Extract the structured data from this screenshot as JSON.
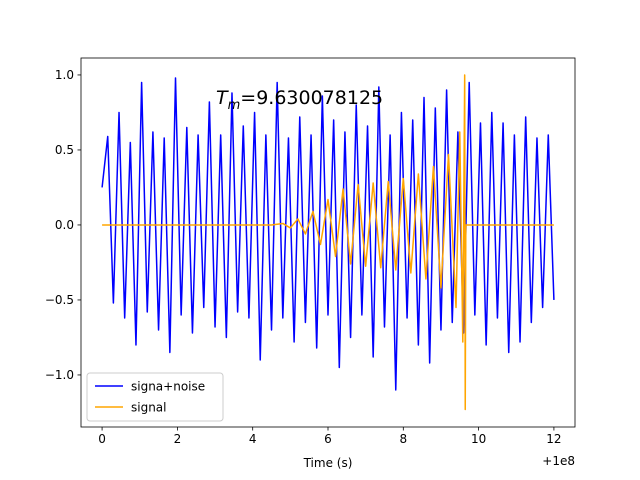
{
  "chart_data": {
    "type": "line",
    "xlabel": "Time (s)",
    "x_offset_label": "+1e8",
    "annotation": {
      "symbol": "T",
      "subscript": "m",
      "text": "=9.630078125"
    },
    "xlim": [
      -0.56,
      12.56
    ],
    "ylim": [
      -1.347,
      1.113
    ],
    "xticks": [
      0,
      2,
      4,
      6,
      8,
      10,
      12
    ],
    "yticks": [
      {
        "value": -1.0,
        "label": "−1.0"
      },
      {
        "value": -0.5,
        "label": "−0.5"
      },
      {
        "value": 0.0,
        "label": "0.0"
      },
      0.5,
      {
        "value": 1.0,
        "label": "1.0"
      }
    ],
    "legend": "lower left",
    "series": [
      {
        "name": "signa+noise",
        "color": "#0000ff",
        "x": [
          0,
          0.15,
          0.3,
          0.45,
          0.6,
          0.75,
          0.9,
          1.05,
          1.2,
          1.35,
          1.5,
          1.65,
          1.8,
          1.95,
          2.1,
          2.25,
          2.4,
          2.55,
          2.7,
          2.85,
          3,
          3.15,
          3.3,
          3.45,
          3.6,
          3.75,
          3.9,
          4.05,
          4.2,
          4.35,
          4.5,
          4.65,
          4.8,
          4.95,
          5.1,
          5.25,
          5.4,
          5.55,
          5.7,
          5.85,
          6,
          6.15,
          6.3,
          6.45,
          6.6,
          6.75,
          6.9,
          7.05,
          7.2,
          7.35,
          7.5,
          7.65,
          7.8,
          7.95,
          8.1,
          8.25,
          8.4,
          8.55,
          8.7,
          8.85,
          9,
          9.15,
          9.3,
          9.45,
          9.6,
          9.75,
          9.9,
          10.05,
          10.2,
          10.35,
          10.5,
          10.65,
          10.8,
          10.95,
          11.1,
          11.25,
          11.4,
          11.55,
          11.7,
          11.85,
          12
        ],
        "values": [
          0.25,
          0.59,
          -0.52,
          0.75,
          -0.62,
          0.55,
          -0.8,
          0.95,
          -0.58,
          0.62,
          -0.7,
          0.58,
          -0.85,
          0.98,
          -0.6,
          0.65,
          -0.72,
          0.6,
          -0.55,
          0.82,
          -0.68,
          0.6,
          -0.75,
          0.88,
          -0.58,
          0.66,
          -0.62,
          0.75,
          -0.9,
          0.6,
          -0.7,
          0.95,
          -0.62,
          0.58,
          -0.78,
          0.72,
          -0.65,
          0.6,
          -0.82,
          0.86,
          -0.6,
          0.7,
          -0.95,
          0.62,
          -0.75,
          0.8,
          -0.6,
          0.66,
          -0.88,
          0.92,
          -0.68,
          0.6,
          -1.1,
          0.75,
          -0.62,
          0.7,
          -0.8,
          0.85,
          -0.92,
          0.78,
          -0.7,
          0.9,
          -0.65,
          0.62,
          -0.72,
          0.95,
          -0.6,
          0.68,
          -0.8,
          0.75,
          -0.62,
          0.68,
          -0.85,
          0.6,
          -0.78,
          0.72,
          -0.65,
          0.58,
          -0.55,
          0.6,
          -0.5
        ]
      },
      {
        "name": "signal",
        "color": "#ffa500",
        "x": [
          0,
          4.5,
          4.8,
          5,
          5.2,
          5.4,
          5.6,
          5.8,
          6,
          6.2,
          6.4,
          6.6,
          6.8,
          7,
          7.2,
          7.4,
          7.6,
          7.8,
          8,
          8.2,
          8.4,
          8.6,
          8.8,
          9,
          9.2,
          9.4,
          9.5,
          9.58,
          9.63,
          9.645,
          9.66,
          12
        ],
        "values": [
          0,
          0,
          0.01,
          -0.02,
          0.04,
          -0.06,
          0.09,
          -0.13,
          0.17,
          -0.21,
          0.24,
          -0.26,
          0.27,
          -0.275,
          0.28,
          -0.285,
          0.29,
          -0.3,
          0.31,
          -0.32,
          0.34,
          -0.36,
          0.39,
          -0.42,
          0.47,
          -0.55,
          0.62,
          -0.78,
          1.0,
          -1.23,
          0,
          0
        ]
      }
    ]
  }
}
